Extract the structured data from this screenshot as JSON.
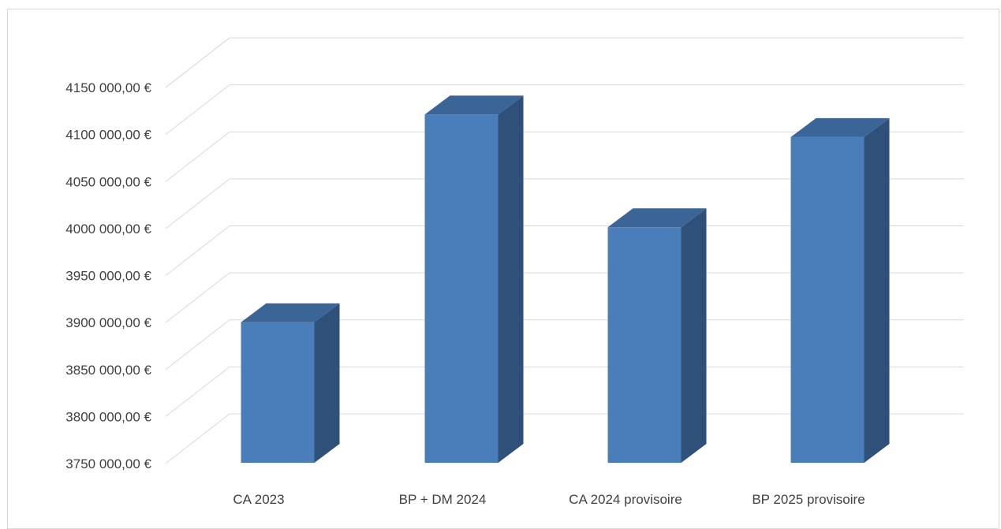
{
  "chart_data": {
    "type": "bar",
    "style": "3d-column",
    "categories": [
      "CA 2023",
      "BP + DM 2024",
      "CA 2024 provisoire",
      "BP 2025 provisoire"
    ],
    "values": [
      3902000,
      4123000,
      4003000,
      4099000
    ],
    "ylim": [
      3750000,
      4150000
    ],
    "y_ticks": [
      3750000,
      3800000,
      3850000,
      3900000,
      3950000,
      4000000,
      4050000,
      4100000,
      4150000
    ],
    "y_tick_labels": [
      "3750 000,00 €",
      "3800 000,00 €",
      "3850 000,00 €",
      "3900 000,00 €",
      "3950 000,00 €",
      "4000 000,00 €",
      "4050 000,00 €",
      "4100 000,00 €",
      "4150 000,00 €"
    ],
    "grid": true,
    "legend": "none",
    "colors": {
      "bar_front": "#4a7ebb",
      "bar_side": "#2f5079",
      "bar_top": "#3c6597",
      "grid": "#d9d9d9",
      "text": "#404040"
    }
  }
}
